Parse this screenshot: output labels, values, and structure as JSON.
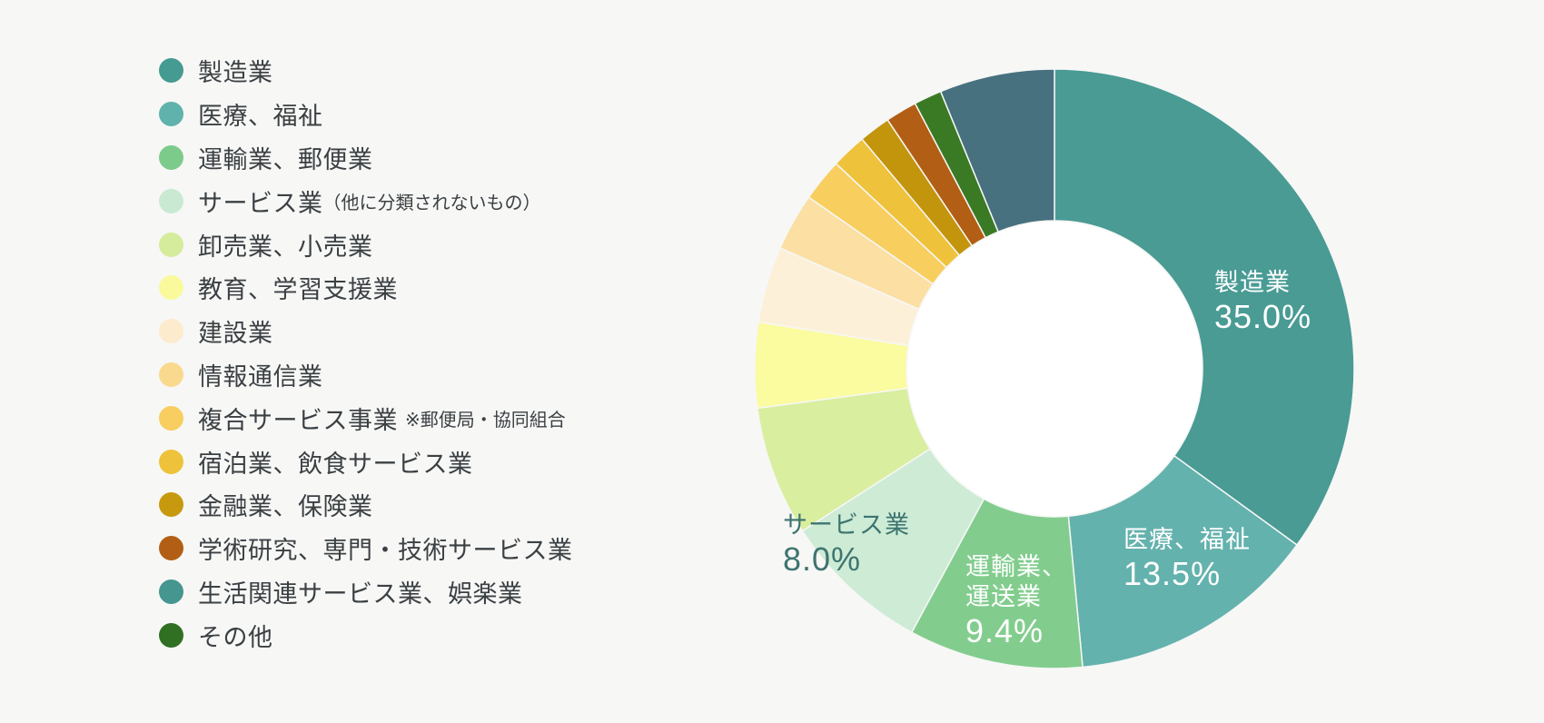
{
  "page": {
    "background": "#F7F7F6",
    "hole_color": "#FFFFFF",
    "legend_text_color": "#3B4043",
    "callout_light_color": "#FFFFFF",
    "callout_dark_color": "#3E7470"
  },
  "legend": {
    "items": [
      {
        "label": "製造業",
        "note": "",
        "color": "#459A92"
      },
      {
        "label": "医療、福祉",
        "note": "",
        "color": "#5FB3AC"
      },
      {
        "label": "運輸業、郵便業",
        "note": "",
        "color": "#7CCB8B"
      },
      {
        "label": "サービス業",
        "note": "（他に分類されないもの）",
        "color": "#C9E9D2"
      },
      {
        "label": "卸売業、小売業",
        "note": "",
        "color": "#D5EC9C"
      },
      {
        "label": "教育、学習支援業",
        "note": "",
        "color": "#FAFA9C"
      },
      {
        "label": "建設業",
        "note": "",
        "color": "#FCEBCC"
      },
      {
        "label": "情報通信業",
        "note": "",
        "color": "#F9D98D"
      },
      {
        "label": "複合サービス事業",
        "note": "※郵便局・協同組合",
        "color": "#F7CE5F"
      },
      {
        "label": "宿泊業、飲食サービス業",
        "note": "",
        "color": "#EEC23B"
      },
      {
        "label": "金融業、保険業",
        "note": "",
        "color": "#C7990F"
      },
      {
        "label": "学術研究、専門・技術サービス業",
        "note": "",
        "color": "#B25F15"
      },
      {
        "label": "生活関連サービス業、娯楽業",
        "note": "",
        "color": "#44968E"
      },
      {
        "label": "その他",
        "note": "",
        "color": "#2F7022"
      }
    ]
  },
  "chart_data": {
    "type": "pie",
    "subtype": "donut",
    "title": "",
    "start_angle_deg": 0,
    "direction": "clockwise",
    "inner_radius_ratio": 0.494,
    "slices": [
      {
        "label": "製造業",
        "value": 35.0,
        "color": "#499B94"
      },
      {
        "label": "医療、福祉",
        "value": 13.5,
        "color": "#64B2AD"
      },
      {
        "label": "運輸業、運送業",
        "value": 9.4,
        "color": "#82CD8E"
      },
      {
        "label": "サービス業（他に分類されないもの）",
        "value": 8.0,
        "color": "#CDEBD5"
      },
      {
        "label": "卸売業、小売業",
        "value": 7.0,
        "color": "#D9EE9F"
      },
      {
        "label": "教育、学習支援業",
        "value": 4.6,
        "color": "#FBFB9F"
      },
      {
        "label": "建設業",
        "value": 4.1,
        "color": "#FCF0D8"
      },
      {
        "label": "情報通信業",
        "value": 3.1,
        "color": "#FBDFA3"
      },
      {
        "label": "複合サービス事業",
        "value": 2.3,
        "color": "#F8CE5E"
      },
      {
        "label": "宿泊業、飲食サービス業",
        "value": 1.9,
        "color": "#EFC23B"
      },
      {
        "label": "金融業、保険業",
        "value": 1.7,
        "color": "#C3950C"
      },
      {
        "label": "学術研究、専門・技術サービス業",
        "value": 1.7,
        "color": "#B25E14"
      },
      {
        "label": "生活関連サービス業、娯楽業",
        "value": 1.5,
        "color": "#3A7A24"
      },
      {
        "label": "その他",
        "value": 6.2,
        "color": "#47717F"
      }
    ],
    "callouts": [
      {
        "name_lines": [
          "製造業"
        ],
        "pct": "35.0%",
        "style": "light"
      },
      {
        "name_lines": [
          "医療、福祉"
        ],
        "pct": "13.5%",
        "style": "light"
      },
      {
        "name_lines": [
          "運輸業、",
          "運送業"
        ],
        "pct": "9.4%",
        "style": "light"
      },
      {
        "name_lines": [
          "サービス業"
        ],
        "pct": "8.0%",
        "style": "dark"
      }
    ]
  }
}
